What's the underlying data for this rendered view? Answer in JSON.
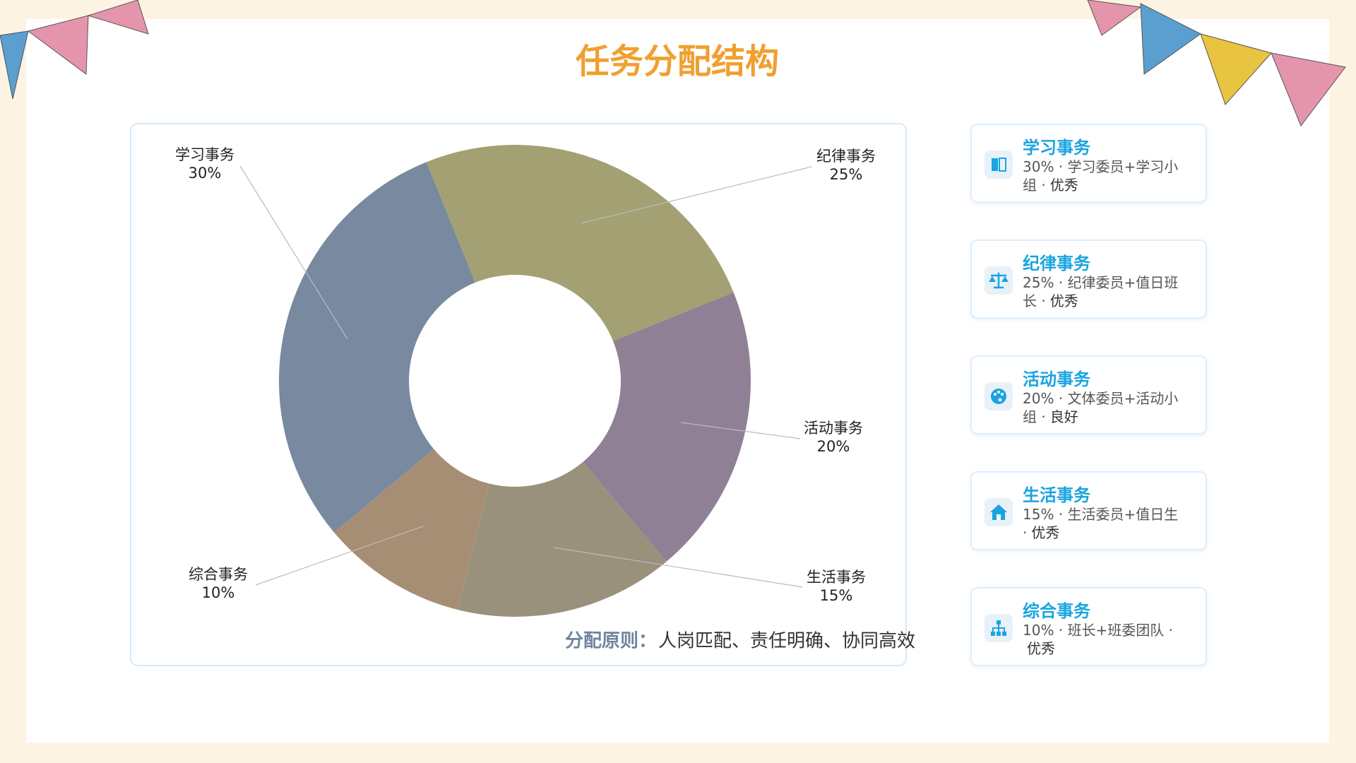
{
  "chart_data": {
    "type": "donut",
    "title": "任务分配结构",
    "categories": [
      "学习事务",
      "纪律事务",
      "活动事务",
      "生活事务",
      "综合事务"
    ],
    "values": [
      30,
      25,
      20,
      15,
      10
    ],
    "value_labels": [
      "30%",
      "25%",
      "20%",
      "15%",
      "10%"
    ],
    "colors": [
      "#7889a0",
      "#a3a073",
      "#8f8095",
      "#9a917c",
      "#a58e74"
    ],
    "annotations": [
      "分配原则：",
      "人岗匹配、责任明确、协同高效"
    ]
  },
  "cards": [
    {
      "title": "学习事务",
      "detail": "30% · 学习委员+学习小组 ·",
      "rating": "优秀"
    },
    {
      "title": "纪律事务",
      "detail": "25% · 纪律委员+值日班长 ·",
      "rating": "优秀"
    },
    {
      "title": "活动事务",
      "detail": "20% · 文体委员+活动小组 ·",
      "rating": "良好"
    },
    {
      "title": "生活事务",
      "detail": "15% · 生活委员+值日生 ·",
      "rating": "优秀"
    },
    {
      "title": "综合事务",
      "detail": "10% · 班长+班委团队 ·",
      "rating": "优秀"
    }
  ]
}
